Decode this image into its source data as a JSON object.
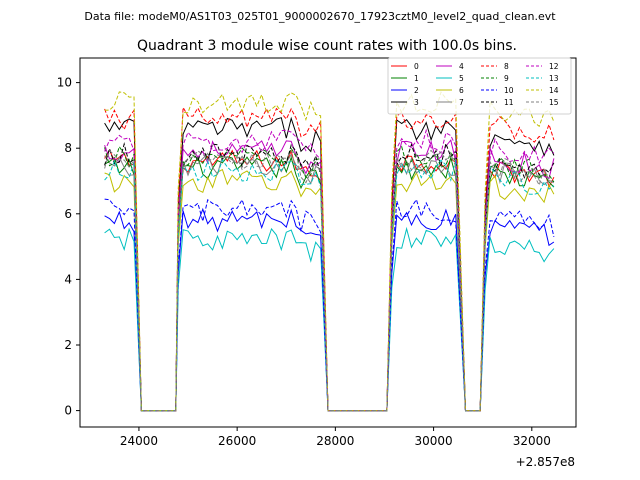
{
  "header": {
    "data_file": "Data file: modeM0/AS1T03_025T01_9000002670_17923cztM0_level2_quad_clean.evt"
  },
  "chart_data": {
    "type": "line",
    "title": "Quadrant 3 module wise count rates with 100.0s bins.",
    "xlabel": "",
    "ylabel": "",
    "x_offset_label": "+2.857e8",
    "xlim": [
      22800,
      32900
    ],
    "ylim": [
      -0.5,
      10.75
    ],
    "xticks": [
      24000,
      26000,
      28000,
      30000,
      32000
    ],
    "yticks": [
      0,
      2,
      4,
      6,
      8,
      10
    ],
    "grid": false,
    "legend_position": "top-right",
    "segments": [
      {
        "start": 23300,
        "end": 23900,
        "falloff": 24050
      },
      {
        "start": 24800,
        "end": 27700,
        "falloff": 27850
      },
      {
        "start": 29150,
        "end": 30500,
        "falloff": 30650
      },
      {
        "start": 31050,
        "end": 32450,
        "falloff": null
      }
    ],
    "zero_ranges": [
      [
        24050,
        24750
      ],
      [
        27850,
        29050
      ],
      [
        30650,
        30950
      ]
    ],
    "series": [
      {
        "name": "0",
        "color": "#ff0000",
        "dash": "solid",
        "level": 7.6
      },
      {
        "name": "1",
        "color": "#008000",
        "dash": "solid",
        "level": 7.4
      },
      {
        "name": "2",
        "color": "#0000ff",
        "dash": "solid",
        "level": 5.8
      },
      {
        "name": "3",
        "color": "#000000",
        "dash": "solid",
        "level": 8.6
      },
      {
        "name": "4",
        "color": "#bf00bf",
        "dash": "solid",
        "level": 7.9
      },
      {
        "name": "5",
        "color": "#00bfbf",
        "dash": "solid",
        "level": 5.2
      },
      {
        "name": "6",
        "color": "#bfbf00",
        "dash": "solid",
        "level": 7.0
      },
      {
        "name": "7",
        "color": "#808080",
        "dash": "solid",
        "level": 7.5
      },
      {
        "name": "8",
        "color": "#ff0000",
        "dash": "dashed",
        "level": 8.9
      },
      {
        "name": "9",
        "color": "#008000",
        "dash": "dashed",
        "level": 7.7
      },
      {
        "name": "10",
        "color": "#0000ff",
        "dash": "dashed",
        "level": 6.1
      },
      {
        "name": "11",
        "color": "#000000",
        "dash": "dashed",
        "level": 7.8
      },
      {
        "name": "12",
        "color": "#bf00bf",
        "dash": "dashed",
        "level": 8.2
      },
      {
        "name": "13",
        "color": "#00bfbf",
        "dash": "dashed",
        "level": 7.3
      },
      {
        "name": "14",
        "color": "#bfbf00",
        "dash": "dashed",
        "level": 9.4
      },
      {
        "name": "15",
        "color": "#808080",
        "dash": "dashed",
        "level": 7.6
      }
    ]
  }
}
